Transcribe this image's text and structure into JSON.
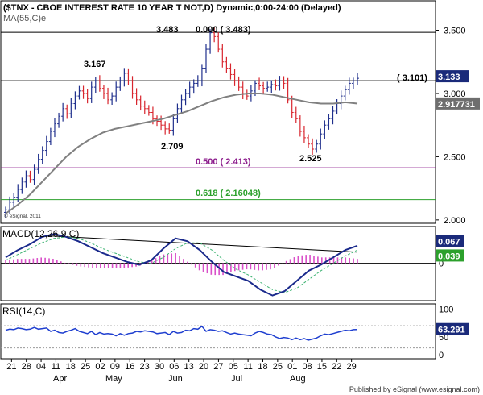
{
  "header": {
    "symbol_title": "($TNX - CBOE INTEREST RATE 10 YEAR T NOT,D) Dynamic,0:00-24:00 (Delayed)",
    "ma_label": "MA(55,C)e",
    "copyright": "© eSignal, 2011"
  },
  "footer": {
    "published_by": "Published by eSignal (www.esignal.com)"
  },
  "colors": {
    "background": "#ffffff",
    "price_up": "#1f2f8c",
    "price_down": "#d8262e",
    "ma_line": "#808080",
    "fib_50": "#8b1a8b",
    "fib_618": "#2ca02c",
    "macd_line": "#1a2a8c",
    "signal_line": "#3cb371",
    "histogram": "#d94fc9",
    "rsi_line": "#1f3fd0",
    "badge_blue": "#1a2a7a",
    "badge_gray": "#6e6e6e",
    "badge_green": "#2ca02c"
  },
  "chart_data": [
    {
      "type": "candlestick",
      "title": "($TNX - CBOE INTEREST RATE 10 YEAR T NOT,D) Dynamic,0:00-24:00 (Delayed)",
      "ylim": [
        1.98,
        3.72
      ],
      "y_ticks": [
        "3.500",
        "3.000",
        "2.500",
        "2.000"
      ],
      "y_tick_values": [
        3.5,
        3.0,
        2.5,
        2.0
      ],
      "x_ticks": [
        "21",
        "28",
        "04",
        "11",
        "18",
        "25",
        "02",
        "09",
        "16",
        "23",
        "30",
        "06",
        "13",
        "20",
        "27",
        "05",
        "11",
        "18",
        "25",
        "01",
        "08",
        "15",
        "22",
        "29"
      ],
      "x_tick_index": [
        2,
        7,
        12,
        17,
        22,
        27,
        32,
        37,
        42,
        47,
        52,
        57,
        62,
        67,
        72,
        77,
        82,
        87,
        92,
        97,
        102,
        107,
        112,
        117
      ],
      "month_labels": [
        {
          "label": "Apr",
          "index": 12
        },
        {
          "label": "May",
          "index": 32
        },
        {
          "label": "Jun",
          "index": 57
        },
        {
          "label": "Jul",
          "index": 77
        },
        {
          "label": "Aug",
          "index": 97
        }
      ],
      "close_series": [
        2.08,
        2.14,
        2.18,
        2.24,
        2.3,
        2.35,
        2.32,
        2.4,
        2.48,
        2.55,
        2.62,
        2.7,
        2.76,
        2.82,
        2.88,
        2.84,
        2.92,
        2.98,
        3.02,
        3.0,
        2.96,
        3.05,
        3.1,
        3.04,
        3.0,
        2.95,
        2.98,
        3.05,
        3.1,
        3.16,
        3.1,
        3.0,
        2.95,
        2.9,
        2.88,
        2.85,
        2.8,
        2.78,
        2.75,
        2.72,
        2.71,
        2.8,
        2.88,
        2.95,
        3.0,
        3.05,
        3.08,
        3.1,
        3.2,
        3.35,
        3.48,
        3.45,
        3.35,
        3.25,
        3.2,
        3.15,
        3.1,
        3.05,
        3.0,
        2.98,
        3.02,
        3.08,
        3.06,
        3.04,
        3.05,
        3.07,
        3.06,
        3.1,
        3.08,
        2.95,
        2.85,
        2.8,
        2.7,
        2.65,
        2.6,
        2.56,
        2.6,
        2.68,
        2.75,
        2.8,
        2.86,
        2.92,
        2.98,
        3.03,
        3.08,
        3.1,
        3.12
      ],
      "last_index": 119,
      "series": [
        {
          "name": "MA(55,C)e",
          "last": "2.917731",
          "values": [
            2.05,
            2.12,
            2.2,
            2.3,
            2.4,
            2.5,
            2.58,
            2.64,
            2.69,
            2.72,
            2.74,
            2.76,
            2.78,
            2.8,
            2.83,
            2.86,
            2.9,
            2.94,
            2.97,
            2.99,
            3.0,
            3.0,
            2.99,
            2.97,
            2.95,
            2.93,
            2.92,
            2.92,
            2.93,
            2.92
          ]
        }
      ],
      "annotations": [
        {
          "text": "3.483",
          "kind": "swing-high"
        },
        {
          "text": "0.000 ( 3.483)",
          "kind": "fib"
        },
        {
          "text": "3.167",
          "kind": "swing-high"
        },
        {
          "text": "2.709",
          "kind": "swing-low"
        },
        {
          "text": "2.525",
          "kind": "swing-low"
        },
        {
          "text": "( 3.101)",
          "kind": "level"
        },
        {
          "text": "0.500 ( 2.413)",
          "kind": "fib"
        },
        {
          "text": "0.618 ( 2.16048)",
          "kind": "fib"
        }
      ],
      "levels": [
        3.483,
        3.101,
        2.413,
        2.16048
      ],
      "last_value_badges": [
        "3.133",
        "2.917731"
      ]
    },
    {
      "type": "line",
      "title": "MACD(12,26,9,C)",
      "ylim": [
        -0.125,
        0.12
      ],
      "y_ticks": [
        "0"
      ],
      "series": [
        {
          "name": "MACD",
          "values": [
            0.02,
            0.045,
            0.065,
            0.09,
            0.1,
            0.09,
            0.075,
            0.055,
            0.035,
            0.02,
            0.005,
            -0.005,
            0.01,
            0.05,
            0.085,
            0.075,
            0.045,
            0.005,
            -0.03,
            -0.045,
            -0.06,
            -0.09,
            -0.11,
            -0.095,
            -0.06,
            -0.025,
            -0.005,
            0.02,
            0.045,
            0.06
          ]
        },
        {
          "name": "Signal",
          "values": [
            0.01,
            0.03,
            0.05,
            0.07,
            0.085,
            0.09,
            0.085,
            0.07,
            0.05,
            0.035,
            0.02,
            0.005,
            0.0,
            0.02,
            0.05,
            0.07,
            0.07,
            0.045,
            0.01,
            -0.02,
            -0.04,
            -0.065,
            -0.09,
            -0.1,
            -0.085,
            -0.055,
            -0.025,
            0.0,
            0.025,
            0.045
          ]
        },
        {
          "name": "Histogram",
          "values": [
            0.01,
            0.015,
            0.015,
            0.02,
            0.015,
            0.0,
            -0.01,
            -0.015,
            -0.015,
            -0.015,
            -0.015,
            -0.01,
            0.01,
            0.03,
            0.035,
            0.005,
            -0.025,
            -0.04,
            -0.04,
            -0.025,
            -0.02,
            -0.025,
            -0.02,
            0.005,
            0.025,
            0.03,
            0.02,
            0.02,
            0.02,
            0.015
          ]
        }
      ],
      "last_value_badges": [
        "0.067",
        "0.039"
      ]
    },
    {
      "type": "line",
      "title": "RSI(14,C)",
      "ylim": [
        12,
        108
      ],
      "y_ticks": [
        "100",
        "50",
        "0"
      ],
      "y_tick_values": [
        100,
        50,
        0
      ],
      "guide_levels": [
        70,
        30
      ],
      "series": [
        {
          "name": "RSI",
          "values": [
            62,
            64,
            63,
            66,
            65,
            63,
            64,
            67,
            64,
            65,
            66,
            60,
            62,
            58,
            57,
            60,
            62,
            65,
            60,
            58,
            56,
            60,
            54,
            58,
            55,
            56,
            55,
            52,
            56,
            53,
            56,
            57,
            60,
            59,
            61,
            60,
            59,
            56,
            57,
            58,
            54,
            60,
            57,
            58,
            62,
            61,
            65,
            64,
            69,
            60,
            63,
            62,
            60,
            61,
            58,
            55,
            57,
            55,
            54,
            53,
            52,
            57,
            60,
            58,
            55,
            54,
            50,
            47,
            49,
            48,
            45,
            48,
            45,
            47,
            44,
            46,
            48,
            52,
            55,
            54,
            56,
            58,
            60,
            62,
            61,
            63,
            63.291
          ]
        }
      ],
      "last_value_badges": [
        "63.291"
      ]
    }
  ]
}
